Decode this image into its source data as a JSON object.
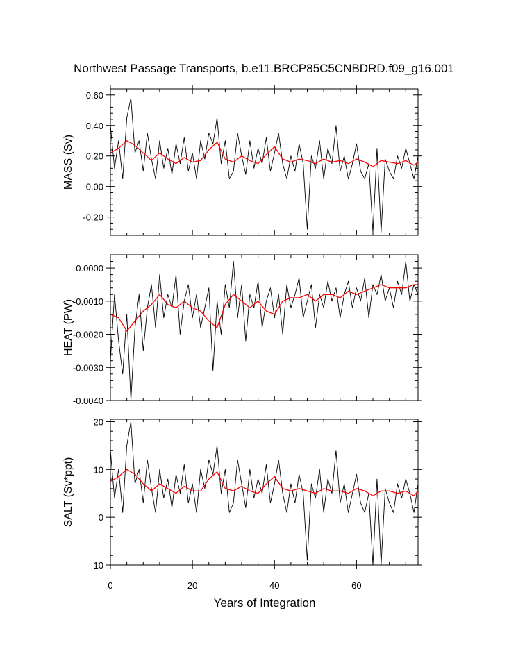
{
  "figure": {
    "title": "Northwest Passage Transports, b.e11.BRCP85C5CNBDRD.f09_g16.001",
    "xlabel": "Years of Integration",
    "raw_color": "#000000",
    "smooth_color": "#ff0000"
  },
  "chart_data": [
    {
      "type": "line",
      "ylabel": "MASS (Sv)",
      "xlim": [
        0,
        75
      ],
      "ylim": [
        -0.32,
        0.64
      ],
      "x_ticks": [
        0,
        20,
        40,
        60
      ],
      "y_ticks": [
        -0.2,
        0.0,
        0.2,
        0.4,
        0.6
      ],
      "y_tick_labels": [
        "-0.20",
        "0.00",
        "0.20",
        "0.40",
        "0.60"
      ],
      "grid": false,
      "series": [
        {
          "role": "monthly",
          "x": [
            0,
            1,
            2,
            3,
            4,
            5,
            6,
            7,
            8,
            9,
            10,
            11,
            12,
            13,
            14,
            15,
            16,
            17,
            18,
            19,
            20,
            21,
            22,
            23,
            24,
            25,
            26,
            27,
            28,
            29,
            30,
            31,
            32,
            33,
            34,
            35,
            36,
            37,
            38,
            39,
            40,
            41,
            42,
            43,
            44,
            45,
            46,
            47,
            48,
            49,
            50,
            51,
            52,
            53,
            54,
            55,
            56,
            57,
            58,
            59,
            60,
            61,
            62,
            63,
            64,
            65,
            66,
            67,
            68,
            69,
            70,
            71,
            72,
            73,
            74,
            75
          ],
          "values": [
            0.4,
            0.12,
            0.3,
            0.05,
            0.45,
            0.58,
            0.22,
            0.3,
            0.1,
            0.35,
            0.18,
            0.05,
            0.3,
            0.12,
            0.25,
            0.08,
            0.28,
            0.15,
            0.32,
            0.1,
            0.22,
            0.05,
            0.3,
            0.18,
            0.35,
            0.28,
            0.45,
            0.15,
            0.3,
            0.05,
            0.1,
            0.35,
            0.2,
            0.08,
            0.3,
            0.12,
            0.25,
            0.15,
            0.32,
            0.1,
            0.22,
            0.35,
            0.15,
            0.05,
            0.2,
            0.1,
            0.28,
            0.15,
            -0.28,
            0.2,
            0.12,
            0.3,
            0.05,
            0.25,
            0.15,
            0.4,
            0.1,
            0.2,
            0.05,
            0.15,
            0.28,
            0.1,
            0.05,
            0.15,
            -0.3,
            0.25,
            -0.3,
            0.18,
            0.1,
            0.05,
            0.2,
            0.12,
            0.25,
            0.15,
            0.05,
            0.2
          ]
        },
        {
          "role": "smoothed",
          "x": [
            0,
            2,
            4,
            6,
            8,
            10,
            12,
            14,
            16,
            18,
            20,
            22,
            24,
            26,
            28,
            30,
            32,
            34,
            36,
            38,
            40,
            42,
            44,
            46,
            48,
            50,
            52,
            54,
            56,
            58,
            60,
            62,
            64,
            66,
            68,
            70,
            72,
            74,
            75
          ],
          "values": [
            0.22,
            0.25,
            0.3,
            0.27,
            0.22,
            0.17,
            0.22,
            0.18,
            0.15,
            0.19,
            0.16,
            0.17,
            0.24,
            0.29,
            0.18,
            0.16,
            0.2,
            0.17,
            0.15,
            0.21,
            0.26,
            0.18,
            0.16,
            0.18,
            0.17,
            0.15,
            0.18,
            0.16,
            0.17,
            0.15,
            0.18,
            0.16,
            0.13,
            0.17,
            0.16,
            0.15,
            0.17,
            0.14,
            0.16
          ]
        }
      ]
    },
    {
      "type": "line",
      "ylabel": "HEAT (PW)",
      "xlim": [
        0,
        75
      ],
      "ylim": [
        -0.004,
        0.0004
      ],
      "x_ticks": [
        0,
        20,
        40,
        60
      ],
      "y_ticks": [
        -0.004,
        -0.003,
        -0.002,
        -0.001,
        0.0
      ],
      "y_tick_labels": [
        "-0.0040",
        "-0.0030",
        "-0.0020",
        "-0.0010",
        "0.0000"
      ],
      "grid": false,
      "series": [
        {
          "role": "monthly",
          "x": [
            0,
            1,
            2,
            3,
            4,
            5,
            6,
            7,
            8,
            9,
            10,
            11,
            12,
            13,
            14,
            15,
            16,
            17,
            18,
            19,
            20,
            21,
            22,
            23,
            24,
            25,
            26,
            27,
            28,
            29,
            30,
            31,
            32,
            33,
            34,
            35,
            36,
            37,
            38,
            39,
            40,
            41,
            42,
            43,
            44,
            45,
            46,
            47,
            48,
            49,
            50,
            51,
            52,
            53,
            54,
            55,
            56,
            57,
            58,
            59,
            60,
            61,
            62,
            63,
            64,
            65,
            66,
            67,
            68,
            69,
            70,
            71,
            72,
            73,
            74,
            75
          ],
          "values": [
            -0.0028,
            -0.0008,
            -0.0022,
            -0.0032,
            -0.0014,
            -0.004,
            -0.0018,
            -0.0008,
            -0.0025,
            -0.0012,
            -0.0005,
            -0.0018,
            -0.0002,
            -0.0015,
            -0.0008,
            -0.0012,
            -0.0002,
            -0.002,
            -0.001,
            -0.0005,
            -0.0015,
            -0.0008,
            -0.0018,
            -0.0012,
            -0.0006,
            -0.0031,
            -0.001,
            -0.002,
            -0.0005,
            -0.0012,
            0.0002,
            -0.0015,
            -0.0005,
            -0.0022,
            -0.0008,
            -0.0012,
            -0.0004,
            -0.0018,
            -0.001,
            -0.0006,
            -0.0015,
            -0.0008,
            -0.002,
            -0.0005,
            -0.0012,
            -0.0008,
            -0.0003,
            -0.0015,
            -0.001,
            -0.0005,
            -0.0018,
            -0.0008,
            -0.0012,
            -0.0004,
            -0.001,
            -0.0006,
            -0.0015,
            -0.0008,
            -0.0004,
            -0.0012,
            -0.0006,
            -0.001,
            -0.0003,
            -0.0015,
            -0.0005,
            -0.0008,
            -0.0002,
            -0.001,
            -0.0006,
            -0.0012,
            -0.0004,
            -0.0008,
            0.0002,
            -0.001,
            -0.0005,
            -0.0008
          ]
        },
        {
          "role": "smoothed",
          "x": [
            0,
            2,
            4,
            6,
            8,
            10,
            12,
            14,
            16,
            18,
            20,
            22,
            24,
            26,
            28,
            30,
            32,
            34,
            36,
            38,
            40,
            42,
            44,
            46,
            48,
            50,
            52,
            54,
            56,
            58,
            60,
            62,
            64,
            66,
            68,
            70,
            72,
            74,
            75
          ],
          "values": [
            -0.0014,
            -0.0015,
            -0.0019,
            -0.0016,
            -0.0013,
            -0.0011,
            -0.0008,
            -0.0011,
            -0.0012,
            -0.001,
            -0.0012,
            -0.0013,
            -0.0016,
            -0.0018,
            -0.0011,
            -0.0008,
            -0.001,
            -0.0012,
            -0.001,
            -0.0013,
            -0.0014,
            -0.001,
            -0.0009,
            -0.0009,
            -0.0008,
            -0.001,
            -0.0008,
            -0.0008,
            -0.0009,
            -0.0007,
            -0.0008,
            -0.0007,
            -0.0006,
            -0.0005,
            -0.0006,
            -0.0006,
            -0.0006,
            -0.0005,
            -0.0005
          ]
        }
      ]
    },
    {
      "type": "line",
      "ylabel": "SALT (Sv*ppt)",
      "xlim": [
        0,
        75
      ],
      "ylim": [
        -10,
        20.5
      ],
      "x_ticks": [
        0,
        20,
        40,
        60
      ],
      "y_ticks": [
        -10,
        0,
        10,
        20
      ],
      "y_tick_labels": [
        "-10",
        "0",
        "10",
        "20"
      ],
      "grid": false,
      "series": [
        {
          "role": "monthly",
          "x": [
            0,
            1,
            2,
            3,
            4,
            5,
            6,
            7,
            8,
            9,
            10,
            11,
            12,
            13,
            14,
            15,
            16,
            17,
            18,
            19,
            20,
            21,
            22,
            23,
            24,
            25,
            26,
            27,
            28,
            29,
            30,
            31,
            32,
            33,
            34,
            35,
            36,
            37,
            38,
            39,
            40,
            41,
            42,
            43,
            44,
            45,
            46,
            47,
            48,
            49,
            50,
            51,
            52,
            53,
            54,
            55,
            56,
            57,
            58,
            59,
            60,
            61,
            62,
            63,
            64,
            65,
            66,
            67,
            68,
            69,
            70,
            71,
            72,
            73,
            74,
            75
          ],
          "values": [
            14,
            4,
            10,
            1,
            15,
            20,
            7,
            10,
            3,
            12,
            6,
            1,
            10,
            4,
            8,
            2,
            9,
            5,
            11,
            3,
            7,
            1,
            10,
            6,
            12,
            9,
            15,
            5,
            10,
            1,
            3,
            12,
            7,
            2,
            10,
            4,
            8,
            5,
            11,
            3,
            7,
            12,
            5,
            1,
            7,
            3,
            9,
            5,
            -9,
            7,
            4,
            10,
            1,
            8,
            5,
            14,
            3,
            7,
            1,
            5,
            9,
            3,
            1,
            5,
            -10,
            8,
            -10,
            6,
            3,
            1,
            7,
            4,
            8,
            5,
            1,
            7
          ]
        },
        {
          "role": "smoothed",
          "x": [
            0,
            2,
            4,
            6,
            8,
            10,
            12,
            14,
            16,
            18,
            20,
            22,
            24,
            26,
            28,
            30,
            32,
            34,
            36,
            38,
            40,
            42,
            44,
            46,
            48,
            50,
            52,
            54,
            56,
            58,
            60,
            62,
            64,
            66,
            68,
            70,
            72,
            74,
            75
          ],
          "values": [
            7.5,
            8.5,
            10,
            9,
            7,
            5.5,
            7,
            6,
            5,
            6.5,
            5.5,
            5.5,
            8,
            9.5,
            6,
            5.5,
            6.5,
            5.5,
            5,
            7,
            8.5,
            6,
            5.5,
            6,
            5.5,
            5,
            6,
            5.5,
            5.5,
            5,
            6,
            5.5,
            4.5,
            5.5,
            5.5,
            5,
            5.5,
            4.5,
            5.5
          ]
        }
      ]
    }
  ]
}
